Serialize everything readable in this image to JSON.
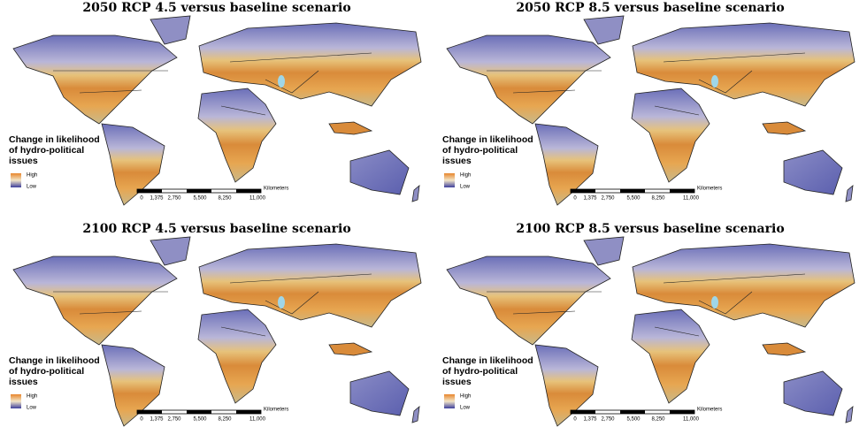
{
  "panels": [
    {
      "title": "2050 RCP 4.5 versus baseline scenario"
    },
    {
      "title": "2050 RCP 8.5 versus baseline scenario"
    },
    {
      "title": "2100 RCP 4.5 versus baseline scenario"
    },
    {
      "title": "2100 RCP 8.5 versus baseline scenario"
    }
  ],
  "legend": {
    "title_lines": [
      "Change in likelihood",
      "of hydro-political",
      "issues"
    ],
    "high": "High",
    "low": "Low"
  },
  "scale_bar": {
    "labels": [
      "0",
      "1,375",
      "2,750",
      "5,500",
      "8,250",
      "11,000"
    ],
    "unit": "Kilometers"
  }
}
